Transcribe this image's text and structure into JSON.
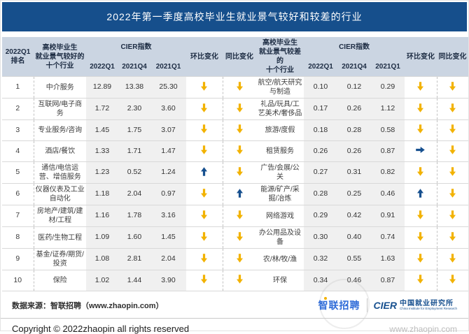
{
  "colors": {
    "title_bar": "#164F8C",
    "header_bg": "#CBD5E2",
    "num_col_bg": "#F0F0F0",
    "arrow_down": "#F2B200",
    "arrow_up": "#17508F",
    "arrow_flat": "#17508F",
    "logo_blue": "#2E6BD8",
    "cier_blue": "#17508F"
  },
  "chart_data": {
    "type": "table",
    "title": "2022年第一季度高校毕业生就业景气较好和较差的行业",
    "headers": {
      "rank": "2022Q1\n排名",
      "good_industries": "高校毕业生\n就业景气较好的\n十个行业",
      "bad_industries": "高校毕业生\n就业景气较差的\n十个行业",
      "cier_index": "CIER指数",
      "q_2022q1": "2022Q1",
      "q_2021q4": "2021Q4",
      "q_2021q1": "2021Q1",
      "mom": "环比变化",
      "yoy": "同比变化"
    },
    "rows": [
      {
        "rank": "1",
        "good": {
          "industry": "中介服务",
          "q2022q1": "12.89",
          "q2021q4": "13.38",
          "q2021q1": "25.30",
          "mom": "down",
          "yoy": "down"
        },
        "bad": {
          "industry": "航空/航天研究与制造",
          "q2022q1": "0.10",
          "q2021q4": "0.12",
          "q2021q1": "0.29",
          "mom": "down",
          "yoy": "down"
        }
      },
      {
        "rank": "2",
        "good": {
          "industry": "互联网/电子商务",
          "q2022q1": "1.72",
          "q2021q4": "2.30",
          "q2021q1": "3.60",
          "mom": "down",
          "yoy": "down"
        },
        "bad": {
          "industry": "礼品/玩具/工艺美术/奢侈品",
          "q2022q1": "0.17",
          "q2021q4": "0.26",
          "q2021q1": "1.12",
          "mom": "down",
          "yoy": "down"
        }
      },
      {
        "rank": "3",
        "good": {
          "industry": "专业服务/咨询",
          "q2022q1": "1.45",
          "q2021q4": "1.75",
          "q2021q1": "3.07",
          "mom": "down",
          "yoy": "down"
        },
        "bad": {
          "industry": "旅游/度假",
          "q2022q1": "0.18",
          "q2021q4": "0.28",
          "q2021q1": "0.58",
          "mom": "down",
          "yoy": "down"
        }
      },
      {
        "rank": "4",
        "good": {
          "industry": "酒店/餐饮",
          "q2022q1": "1.33",
          "q2021q4": "1.71",
          "q2021q1": "1.47",
          "mom": "down",
          "yoy": "down"
        },
        "bad": {
          "industry": "租赁服务",
          "q2022q1": "0.26",
          "q2021q4": "0.26",
          "q2021q1": "0.87",
          "mom": "flat",
          "yoy": "down"
        }
      },
      {
        "rank": "5",
        "good": {
          "industry": "通信/电信运营、增值服务",
          "q2022q1": "1.23",
          "q2021q4": "0.52",
          "q2021q1": "1.24",
          "mom": "up",
          "yoy": "down"
        },
        "bad": {
          "industry": "广告/会展/公关",
          "q2022q1": "0.27",
          "q2021q4": "0.31",
          "q2021q1": "0.82",
          "mom": "down",
          "yoy": "down"
        }
      },
      {
        "rank": "6",
        "good": {
          "industry": "仪器仪表及工业自动化",
          "q2022q1": "1.18",
          "q2021q4": "2.04",
          "q2021q1": "0.97",
          "mom": "down",
          "yoy": "up"
        },
        "bad": {
          "industry": "能源/矿产/采掘/冶炼",
          "q2022q1": "0.28",
          "q2021q4": "0.25",
          "q2021q1": "0.46",
          "mom": "up",
          "yoy": "down"
        }
      },
      {
        "rank": "7",
        "good": {
          "industry": "房地产/建筑/建材/工程",
          "q2022q1": "1.16",
          "q2021q4": "1.78",
          "q2021q1": "3.16",
          "mom": "down",
          "yoy": "down"
        },
        "bad": {
          "industry": "网络游戏",
          "q2022q1": "0.29",
          "q2021q4": "0.42",
          "q2021q1": "0.91",
          "mom": "down",
          "yoy": "down"
        }
      },
      {
        "rank": "8",
        "good": {
          "industry": "医药/生物工程",
          "q2022q1": "1.09",
          "q2021q4": "1.60",
          "q2021q1": "1.45",
          "mom": "down",
          "yoy": "down"
        },
        "bad": {
          "industry": "办公用品及设备",
          "q2022q1": "0.30",
          "q2021q4": "0.40",
          "q2021q1": "0.74",
          "mom": "down",
          "yoy": "down"
        }
      },
      {
        "rank": "9",
        "good": {
          "industry": "基金/证券/期货/投资",
          "q2022q1": "1.08",
          "q2021q4": "2.81",
          "q2021q1": "2.04",
          "mom": "down",
          "yoy": "down"
        },
        "bad": {
          "industry": "农/林/牧/渔",
          "q2022q1": "0.32",
          "q2021q4": "0.55",
          "q2021q1": "1.63",
          "mom": "down",
          "yoy": "down"
        }
      },
      {
        "rank": "10",
        "good": {
          "industry": "保险",
          "q2022q1": "1.02",
          "q2021q4": "1.44",
          "q2021q1": "3.90",
          "mom": "down",
          "yoy": "down"
        },
        "bad": {
          "industry": "环保",
          "q2022q1": "0.34",
          "q2021q4": "0.46",
          "q2021q1": "0.87",
          "mom": "down",
          "yoy": "down"
        }
      }
    ]
  },
  "footer": {
    "source": "数据来源：智联招聘（www.zhaopin.com）",
    "zhaopin_logo": "智联招聘",
    "cier_logo": "CIER",
    "cier_cn": "中国就业研究所",
    "cier_en": "China Institute for Employment Research",
    "copyright": "Copyright © 2022zhaopin all rights reserved",
    "watermark": "www.zhaopin.com"
  }
}
